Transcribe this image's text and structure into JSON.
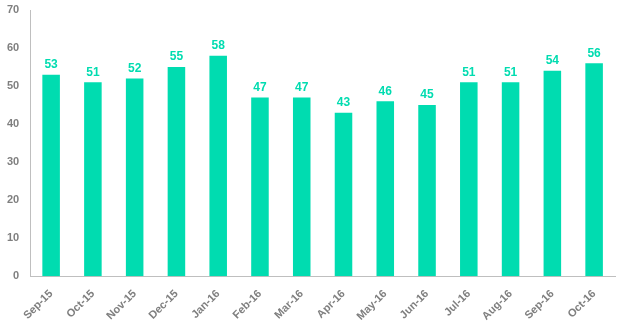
{
  "chart_data": {
    "type": "bar",
    "categories": [
      "Sep-15",
      "Oct-15",
      "Nov-15",
      "Dec-15",
      "Jan-16",
      "Feb-16",
      "Mar-16",
      "Apr-16",
      "May-16",
      "Jun-16",
      "Jul-16",
      "Aug-16",
      "Sep-16",
      "Oct-16"
    ],
    "values": [
      53,
      51,
      52,
      55,
      58,
      47,
      47,
      43,
      46,
      45,
      51,
      51,
      54,
      56
    ],
    "color": "#00dcb0",
    "ylim": [
      0,
      70
    ],
    "yticks": [
      0,
      10,
      20,
      30,
      40,
      50,
      60,
      70
    ],
    "grid": false,
    "data_labels": true
  }
}
